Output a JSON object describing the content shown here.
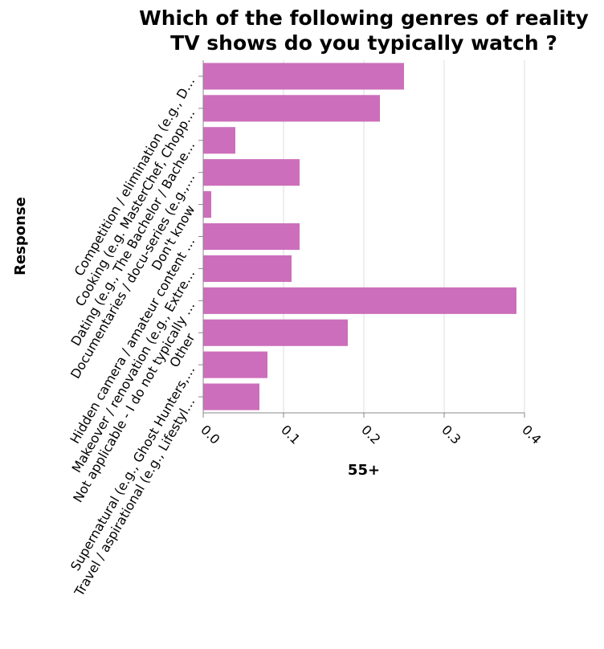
{
  "chart_data": {
    "type": "bar",
    "orientation": "horizontal",
    "title": [
      "Which of the following genres of reality",
      "TV shows do you typically watch ?"
    ],
    "xlabel": "55+",
    "ylabel": "Response",
    "xlim": [
      0,
      0.4
    ],
    "xticks": [
      "0.0",
      "0.1",
      "0.2",
      "0.3",
      "0.4"
    ],
    "grid": true,
    "bar_color": "#cc6ebb",
    "categories": [
      "Competition / elimination (e.g., D…",
      "Cooking (e.g. MasterChef, Chopp…",
      "Dating (e.g., The Bachelor / Bache…",
      "Documentaries / docu-series (e.g.,…",
      "Don't know",
      "Hidden camera / amateur content …",
      "Makeover / renovation (e.g., Extre…",
      "Not applicable - I do not typically …",
      "Other",
      "Supernatural (e.g., Ghost Hunters,…",
      "Travel / aspirational (e.g., Lifestyl…"
    ],
    "values": [
      0.25,
      0.22,
      0.04,
      0.12,
      0.01,
      0.12,
      0.11,
      0.39,
      0.18,
      0.08,
      0.07
    ]
  }
}
